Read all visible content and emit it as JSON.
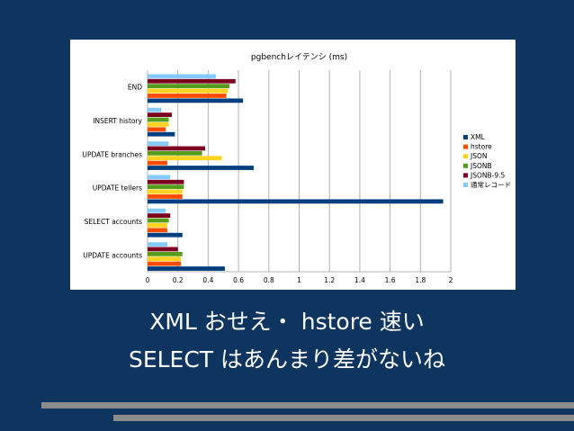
{
  "chart_data": {
    "type": "bar",
    "orientation": "horizontal",
    "title": "pgbenchレイテンシ (ms)",
    "categories": [
      "END",
      "INSERT history",
      "UPDATE branches",
      "UPDATE tellers",
      "SELECT accounts",
      "UPDATE accounts"
    ],
    "series": [
      {
        "name": "XML",
        "color": "#003f7f",
        "values": [
          0.63,
          0.18,
          0.7,
          1.95,
          0.23,
          0.51
        ]
      },
      {
        "name": "hstore",
        "color": "#ff4c00",
        "values": [
          0.52,
          0.12,
          0.13,
          0.23,
          0.13,
          0.22
        ]
      },
      {
        "name": "JSON",
        "color": "#ffd320",
        "values": [
          0.53,
          0.14,
          0.49,
          0.23,
          0.13,
          0.22
        ]
      },
      {
        "name": "JSONB",
        "color": "#579d1c",
        "values": [
          0.54,
          0.14,
          0.36,
          0.24,
          0.14,
          0.23
        ]
      },
      {
        "name": "JSONB-9.5",
        "color": "#7e0021",
        "values": [
          0.58,
          0.16,
          0.38,
          0.24,
          0.15,
          0.2
        ]
      },
      {
        "name": "通常レコード",
        "color": "#83caff",
        "values": [
          0.45,
          0.09,
          0.14,
          0.15,
          0.12,
          0.13
        ]
      }
    ],
    "xlim": [
      0,
      2
    ],
    "xticks": [
      "0",
      "0.2",
      "0.4",
      "0.6",
      "0.8",
      "1",
      "1.2",
      "1.4",
      "1.6",
      "1.8",
      "2"
    ],
    "grid": true,
    "legend_position": "right"
  },
  "captions": {
    "line1": "XML おせえ・ hstore 速い",
    "line2": "SELECT はあんまり差がないね"
  }
}
